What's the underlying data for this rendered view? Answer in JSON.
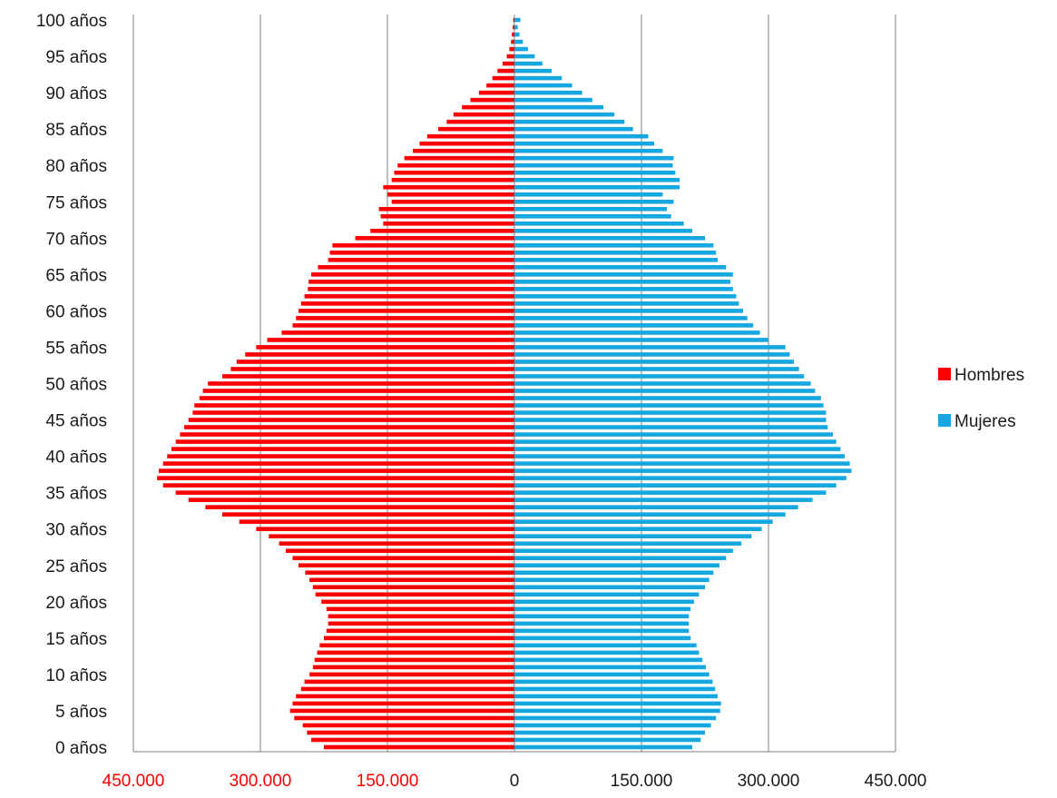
{
  "chart_data": {
    "type": "bar",
    "orientation": "horizontal",
    "layout": "population-pyramid",
    "categories_note": "ages 0..100 años, one bar per year",
    "x_tick_labels": [
      "450.000",
      "300.000",
      "150.000",
      "0",
      "150.000",
      "300.000",
      "450.000"
    ],
    "x_tick_values": [
      -450000,
      -300000,
      -150000,
      0,
      150000,
      300000,
      450000
    ],
    "y_tick_labels": [
      "0 años",
      "5 años",
      "10 años",
      "15 años",
      "20 años",
      "25 años",
      "30 años",
      "35 años",
      "40 años",
      "45 años",
      "50 años",
      "55 años",
      "60 años",
      "65 años",
      "70 años",
      "75 años",
      "80 años",
      "85 años",
      "90 años",
      "95 años",
      "100 años"
    ],
    "y_tick_ages": [
      0,
      5,
      10,
      15,
      20,
      25,
      30,
      35,
      40,
      45,
      50,
      55,
      60,
      65,
      70,
      75,
      80,
      85,
      90,
      95,
      100
    ],
    "xlim": [
      -450000,
      450000
    ],
    "grid": "vertical",
    "legend_position": "right",
    "negative_tick_color": "#ff0000",
    "positive_tick_color": "#1a1a1a",
    "series": [
      {
        "name": "Hombres",
        "color": "#ff0000",
        "ages": [
          0,
          1,
          2,
          3,
          4,
          5,
          6,
          7,
          8,
          9,
          10,
          11,
          12,
          13,
          14,
          15,
          16,
          17,
          18,
          19,
          20,
          21,
          22,
          23,
          24,
          25,
          26,
          27,
          28,
          29,
          30,
          31,
          32,
          33,
          34,
          35,
          36,
          37,
          38,
          39,
          40,
          41,
          42,
          43,
          44,
          45,
          46,
          47,
          48,
          49,
          50,
          51,
          52,
          53,
          54,
          55,
          56,
          57,
          58,
          59,
          60,
          61,
          62,
          63,
          64,
          65,
          66,
          67,
          68,
          69,
          70,
          71,
          72,
          73,
          74,
          75,
          76,
          77,
          78,
          79,
          80,
          81,
          82,
          83,
          84,
          85,
          86,
          87,
          88,
          89,
          90,
          91,
          92,
          93,
          94,
          95,
          96,
          97,
          98,
          99,
          100
        ],
        "values": [
          225000,
          240000,
          245000,
          250000,
          260000,
          265000,
          262000,
          258000,
          252000,
          248000,
          242000,
          238000,
          236000,
          233000,
          230000,
          225000,
          222000,
          220000,
          220000,
          222000,
          228000,
          235000,
          238000,
          242000,
          247000,
          255000,
          262000,
          270000,
          278000,
          290000,
          305000,
          325000,
          345000,
          365000,
          385000,
          400000,
          415000,
          422000,
          420000,
          415000,
          410000,
          405000,
          400000,
          395000,
          390000,
          385000,
          380000,
          378000,
          372000,
          368000,
          362000,
          345000,
          335000,
          328000,
          318000,
          305000,
          292000,
          275000,
          262000,
          258000,
          255000,
          252000,
          248000,
          244000,
          243000,
          240000,
          232000,
          220000,
          218000,
          215000,
          188000,
          170000,
          155000,
          158000,
          160000,
          145000,
          150000,
          155000,
          145000,
          142000,
          138000,
          130000,
          120000,
          112000,
          103000,
          90000,
          80000,
          72000,
          62000,
          52000,
          42000,
          33000,
          26000,
          20000,
          14000,
          9000,
          6000,
          4000,
          3000,
          2000,
          1500
        ],
        "ticks_from": 0
      },
      {
        "name": "Mujeres",
        "color": "#16a6e2",
        "ages": [
          0,
          1,
          2,
          3,
          4,
          5,
          6,
          7,
          8,
          9,
          10,
          11,
          12,
          13,
          14,
          15,
          16,
          17,
          18,
          19,
          20,
          21,
          22,
          23,
          24,
          25,
          26,
          27,
          28,
          29,
          30,
          31,
          32,
          33,
          34,
          35,
          36,
          37,
          38,
          39,
          40,
          41,
          42,
          43,
          44,
          45,
          46,
          47,
          48,
          49,
          50,
          51,
          52,
          53,
          54,
          55,
          56,
          57,
          58,
          59,
          60,
          61,
          62,
          63,
          64,
          65,
          66,
          67,
          68,
          69,
          70,
          71,
          72,
          73,
          74,
          75,
          76,
          77,
          78,
          79,
          80,
          81,
          82,
          83,
          84,
          85,
          86,
          87,
          88,
          89,
          90,
          91,
          92,
          93,
          94,
          95,
          96,
          97,
          98,
          99,
          100
        ],
        "values": [
          210000,
          220000,
          225000,
          232000,
          238000,
          243000,
          244000,
          240000,
          237000,
          234000,
          230000,
          226000,
          222000,
          218000,
          215000,
          208000,
          206000,
          206000,
          206000,
          208000,
          212000,
          218000,
          225000,
          230000,
          235000,
          242000,
          250000,
          258000,
          268000,
          280000,
          292000,
          305000,
          320000,
          335000,
          352000,
          368000,
          380000,
          392000,
          398000,
          396000,
          390000,
          385000,
          380000,
          376000,
          370000,
          368000,
          368000,
          365000,
          362000,
          355000,
          350000,
          342000,
          336000,
          330000,
          325000,
          320000,
          300000,
          290000,
          282000,
          275000,
          270000,
          265000,
          262000,
          258000,
          255000,
          258000,
          250000,
          240000,
          238000,
          235000,
          225000,
          210000,
          200000,
          185000,
          180000,
          188000,
          175000,
          195000,
          195000,
          190000,
          187000,
          188000,
          175000,
          165000,
          158000,
          140000,
          130000,
          118000,
          105000,
          92000,
          80000,
          68000,
          56000,
          44000,
          33000,
          24000,
          16000,
          10000,
          6000,
          4000,
          7000
        ]
      }
    ]
  }
}
